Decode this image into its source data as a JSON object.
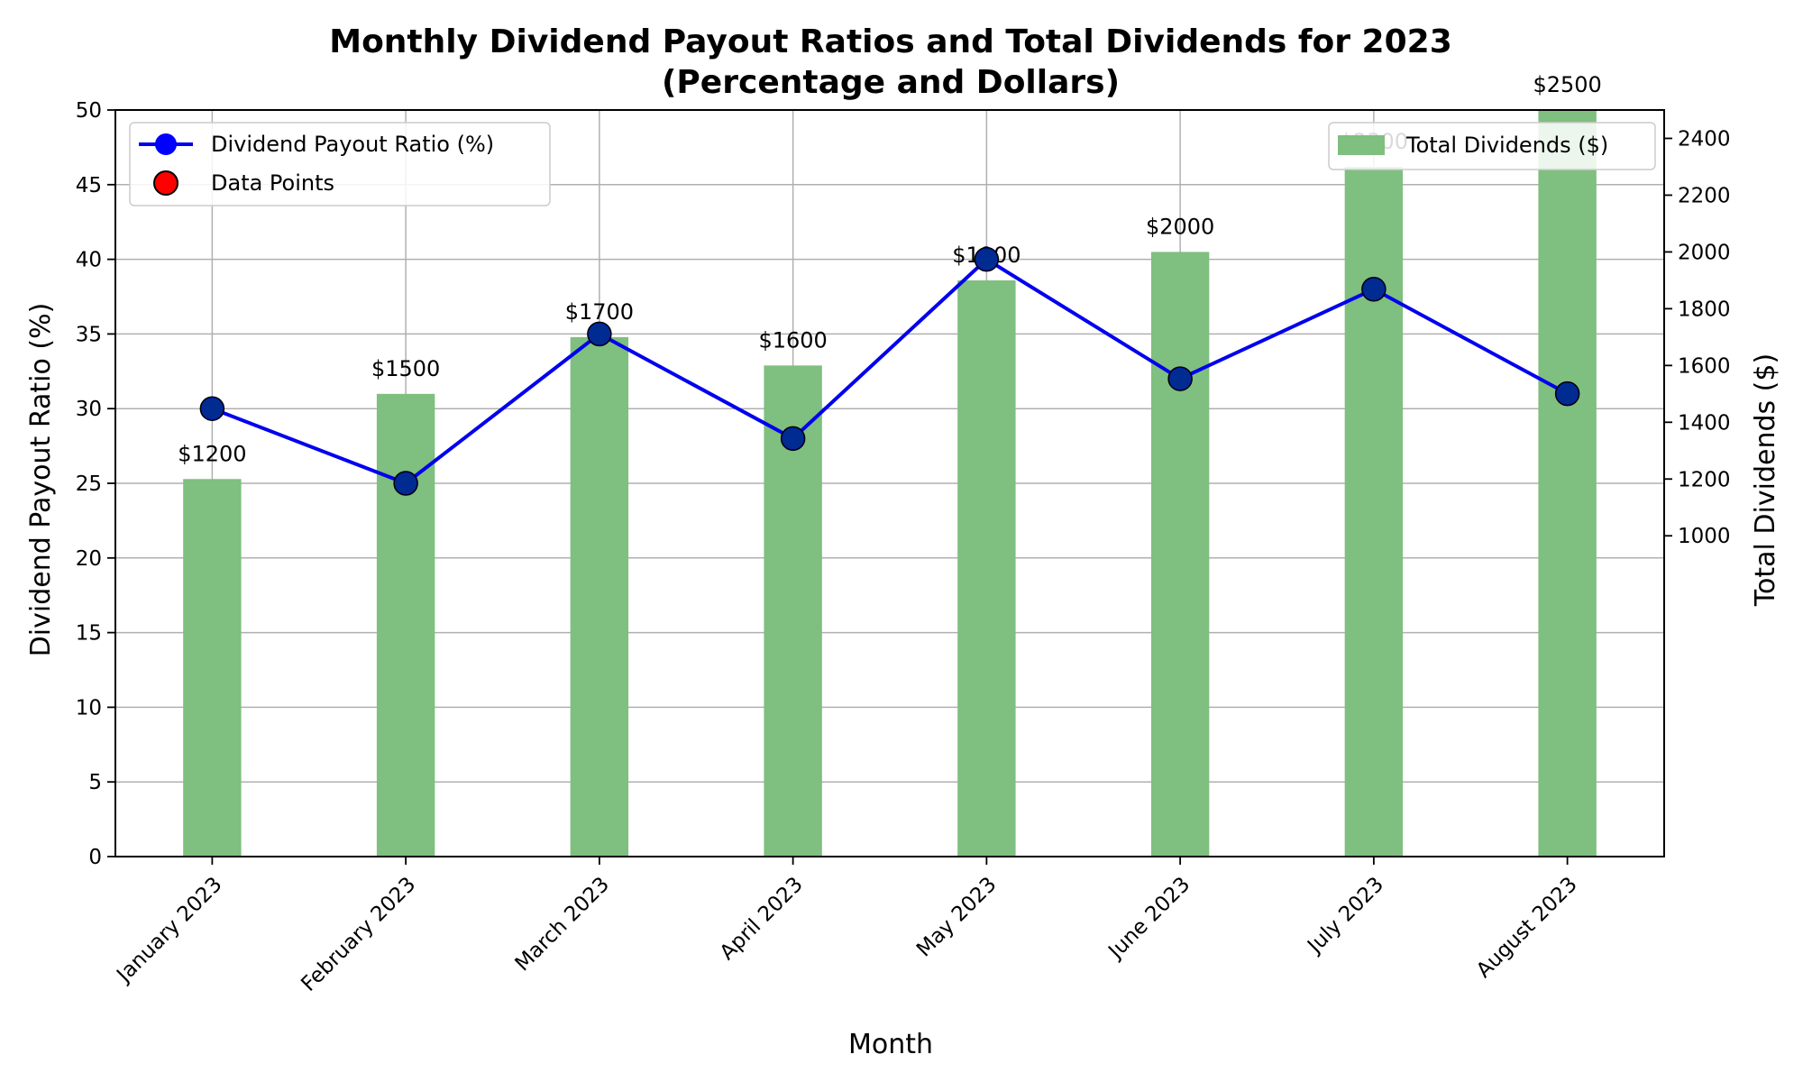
{
  "chart_data": {
    "type": "bar",
    "title": "Monthly Dividend Payout Ratios and Total Dividends for 2023",
    "subtitle": "(Percentage and Dollars)",
    "xlabel": "Month",
    "ylabel": "Dividend Payout Ratio (%)",
    "y2label": "Total Dividends ($)",
    "categories": [
      "January 2023",
      "February 2023",
      "March 2023",
      "April 2023",
      "May 2023",
      "June 2023",
      "July 2023",
      "August 2023"
    ],
    "series": [
      {
        "name": "Dividend Payout Ratio (%)",
        "type": "line",
        "axis": "left",
        "color": "#0000ee",
        "marker_color": "#0000ff",
        "values": [
          30,
          25,
          35,
          28,
          40,
          32,
          38,
          31
        ]
      },
      {
        "name": "Total Dividends ($)",
        "type": "bar",
        "axis": "right",
        "color": "#7fbf7f",
        "values": [
          1200,
          1500,
          1700,
          1600,
          1900,
          2000,
          2300,
          2500
        ],
        "data_labels": [
          "$1200",
          "$1500",
          "$1700",
          "$1600",
          "$1900",
          "$2000",
          "$2300",
          "$2500"
        ]
      }
    ],
    "scatter_legend": {
      "name": "Data Points",
      "color": "#ff0000"
    },
    "ylim": [
      0,
      50
    ],
    "yticks": [
      0,
      5,
      10,
      15,
      20,
      25,
      30,
      35,
      40,
      45,
      50
    ],
    "y2lim": [
      -130,
      2500
    ],
    "y2ticks": [
      1000,
      1200,
      1400,
      1600,
      1800,
      2000,
      2200,
      2400
    ],
    "grid": true,
    "legend_left_position": "top-left",
    "legend_right_position": "top-right"
  }
}
